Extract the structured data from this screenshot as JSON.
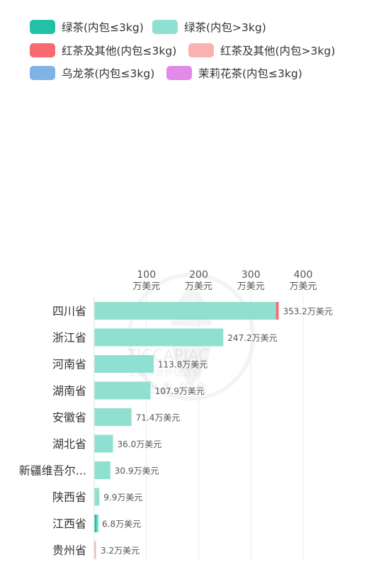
{
  "legend": [
    {
      "label": "绿茶(内包≤3kg)",
      "color": "#21c1a6"
    },
    {
      "label": "绿茶(内包>3kg)",
      "color": "#8fe0d1"
    },
    {
      "label": "红茶及其他(内包≤3kg)",
      "color": "#f76b70"
    },
    {
      "label": "红茶及其他(内包>3kg)",
      "color": "#f9b2b2"
    },
    {
      "label": "乌龙茶(内包≤3kg)",
      "color": "#7fb3e8"
    },
    {
      "label": "茉莉花茶(内包≤3kg)",
      "color": "#e28ae8"
    }
  ],
  "chart_data": {
    "type": "bar",
    "orientation": "horizontal",
    "stacked": true,
    "unit": "万美元",
    "xlim": [
      0,
      450
    ],
    "x_ticks": [
      {
        "value": 100,
        "line1": "100",
        "line2": "万美元"
      },
      {
        "value": 200,
        "line1": "200",
        "line2": "万美元"
      },
      {
        "value": 300,
        "line1": "300",
        "line2": "万美元"
      },
      {
        "value": 400,
        "line1": "400",
        "line2": "万美元"
      }
    ],
    "grid": true,
    "legend_position": "top",
    "categories": [
      "四川省",
      "浙江省",
      "河南省",
      "湖南省",
      "安徽省",
      "湖北省",
      "新疆维吾尔...",
      "陕西省",
      "江西省",
      "贵州省"
    ],
    "totals": [
      353.2,
      247.2,
      113.8,
      107.9,
      71.4,
      36.0,
      30.9,
      9.9,
      6.8,
      3.2
    ],
    "total_labels": [
      "353.2万美元",
      "247.2万美元",
      "113.8万美元",
      "107.9万美元",
      "71.4万美元",
      "36.0万美元",
      "30.9万美元",
      "9.9万美元",
      "6.8万美元",
      "3.2万美元"
    ],
    "series": [
      {
        "name": "绿茶(内包≤3kg)",
        "color": "#21c1a6",
        "values": [
          0,
          0,
          0,
          0,
          0,
          0,
          0,
          0,
          5.0,
          0
        ]
      },
      {
        "name": "绿茶(内包>3kg)",
        "color": "#8fe0d1",
        "values": [
          348.0,
          247.2,
          113.8,
          107.9,
          71.4,
          36.0,
          30.9,
          9.9,
          1.8,
          0
        ]
      },
      {
        "name": "红茶及其他(内包≤3kg)",
        "color": "#f76b70",
        "values": [
          5.2,
          0,
          0,
          0,
          0,
          0,
          0,
          0,
          0,
          0
        ]
      },
      {
        "name": "红茶及其他(内包>3kg)",
        "color": "#f9b2b2",
        "values": [
          0,
          0,
          0,
          0,
          0,
          0,
          0,
          0,
          0,
          3.2
        ]
      },
      {
        "name": "乌龙茶(内包≤3kg)",
        "color": "#7fb3e8",
        "values": [
          0,
          0,
          0,
          0,
          0,
          0,
          0,
          0,
          0,
          0
        ]
      },
      {
        "name": "茉莉花茶(内包≤3kg)",
        "color": "#e28ae8",
        "values": [
          0,
          0,
          0,
          0,
          0,
          0,
          0,
          0,
          0,
          0
        ]
      }
    ]
  },
  "watermark": {
    "line1": "TICCAPIAC",
    "line2": "业国际合作促进会",
    "line3": "茶 业 委 员 会"
  }
}
